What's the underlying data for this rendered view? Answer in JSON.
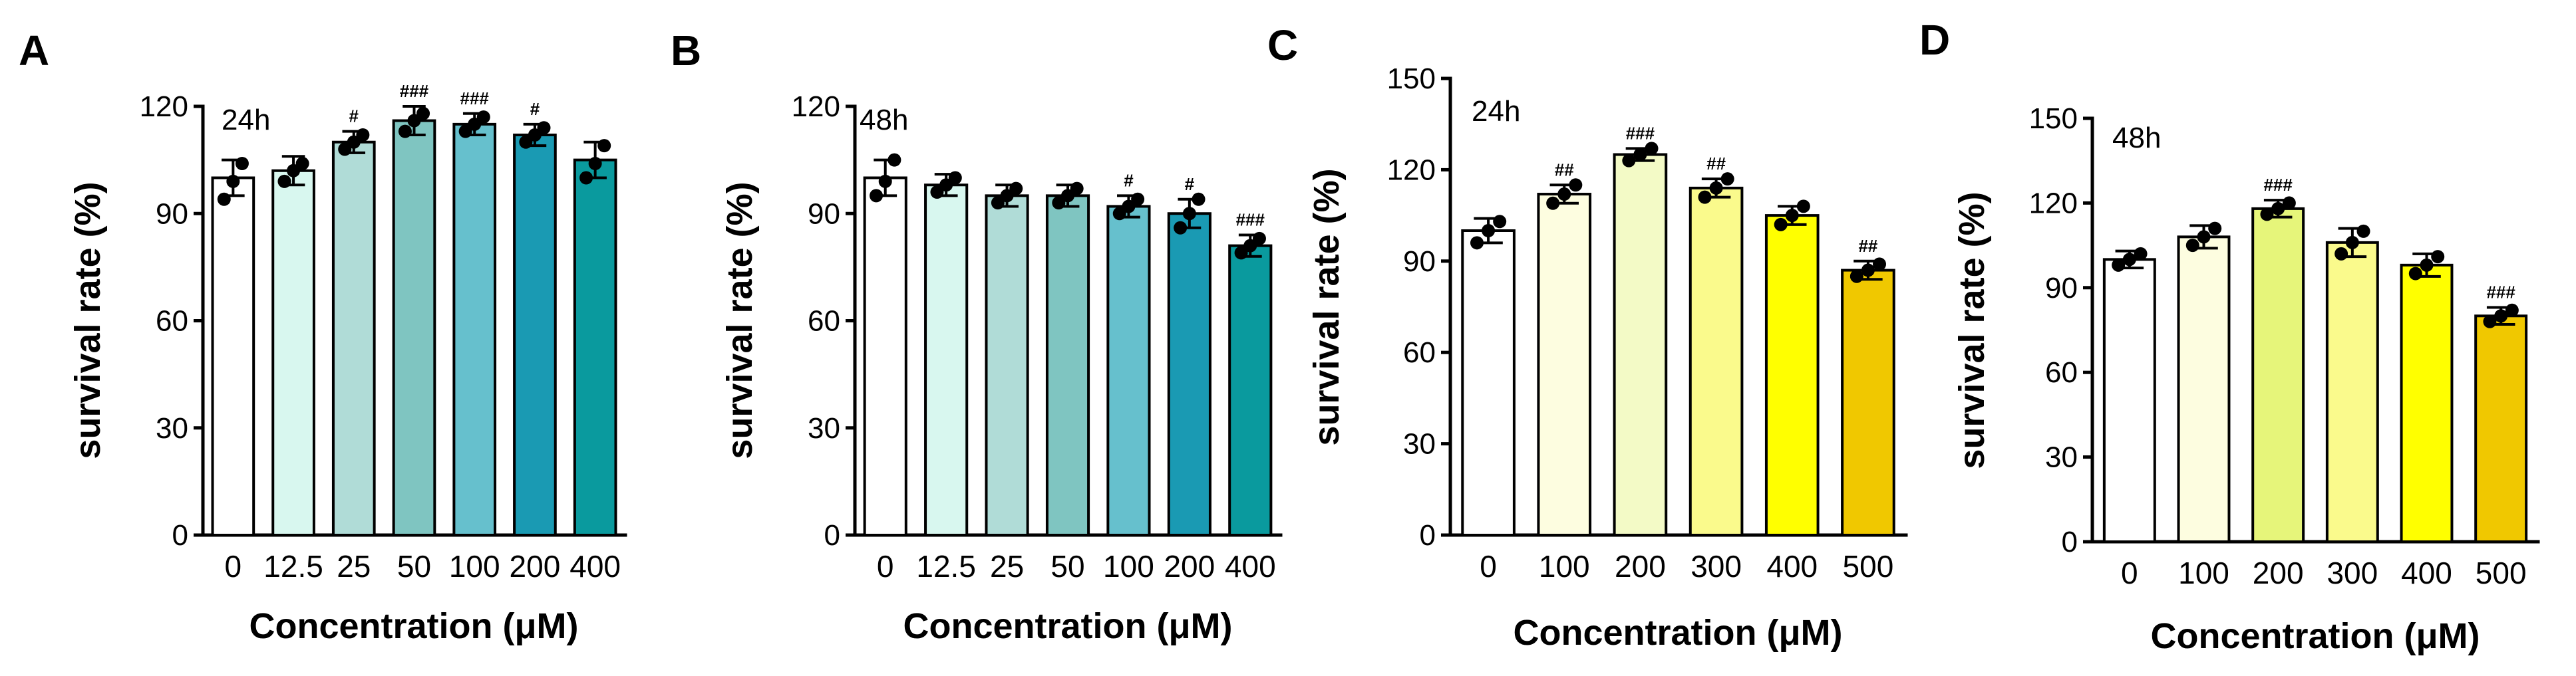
{
  "chart_data": [
    {
      "type": "bar",
      "panel_label": "A",
      "annotation": "24h",
      "categories": [
        "0",
        "12.5",
        "25",
        "50",
        "100",
        "200",
        "400"
      ],
      "values": [
        100,
        102,
        110,
        116,
        115,
        112,
        105
      ],
      "errors": [
        5,
        4,
        3,
        4,
        3,
        3,
        5
      ],
      "points": [
        [
          94,
          99,
          104
        ],
        [
          99,
          102,
          104
        ],
        [
          108,
          110,
          112
        ],
        [
          113,
          116,
          118
        ],
        [
          113,
          115,
          117
        ],
        [
          110,
          112,
          114
        ],
        [
          100,
          104,
          109
        ]
      ],
      "significance": [
        "",
        "",
        "#",
        "###",
        "###",
        "#",
        ""
      ],
      "colors": [
        "#ffffff",
        "#d8f7ef",
        "#b0dcd7",
        "#7fc5c1",
        "#66c0cd",
        "#1a9ab3",
        "#0a9a9e"
      ],
      "xlabel": "Concentration (μM)",
      "ylabel": "survival rate (%)",
      "ylim": [
        0,
        120
      ],
      "yticks": [
        0,
        30,
        60,
        90,
        120
      ]
    },
    {
      "type": "bar",
      "panel_label": "B",
      "annotation": "48h",
      "categories": [
        "0",
        "12.5",
        "25",
        "50",
        "100",
        "200",
        "400"
      ],
      "values": [
        100,
        98,
        95,
        95,
        92,
        90,
        81
      ],
      "errors": [
        5,
        3,
        3,
        3,
        3,
        4,
        3
      ],
      "points": [
        [
          95,
          99,
          105
        ],
        [
          96,
          98,
          100
        ],
        [
          93,
          95,
          97
        ],
        [
          93,
          95,
          97
        ],
        [
          90,
          92,
          94
        ],
        [
          86,
          90,
          94
        ],
        [
          79,
          81,
          83
        ]
      ],
      "significance": [
        "",
        "",
        "",
        "",
        "#",
        "#",
        "###"
      ],
      "colors": [
        "#ffffff",
        "#d8f7ef",
        "#b0dcd7",
        "#7fc5c1",
        "#66c0cd",
        "#1a9ab3",
        "#0a9a9e"
      ],
      "xlabel": "Concentration (μM)",
      "ylabel": "survival rate (%)",
      "ylim": [
        0,
        120
      ],
      "yticks": [
        0,
        30,
        60,
        90,
        120
      ]
    },
    {
      "type": "bar",
      "panel_label": "C",
      "annotation": "24h",
      "categories": [
        "0",
        "100",
        "200",
        "300",
        "400",
        "500"
      ],
      "values": [
        100,
        112,
        125,
        114,
        105,
        87
      ],
      "errors": [
        4,
        3,
        2,
        3,
        3,
        3
      ],
      "points": [
        [
          96,
          100,
          103
        ],
        [
          109,
          112,
          115
        ],
        [
          123,
          125,
          127
        ],
        [
          111,
          114,
          117
        ],
        [
          102,
          105,
          108
        ],
        [
          85,
          87,
          89
        ]
      ],
      "significance": [
        "",
        "##",
        "###",
        "##",
        "",
        "##"
      ],
      "colors": [
        "#ffffff",
        "#fdfde0",
        "#f3fac6",
        "#fafa8c",
        "#ffff00",
        "#f0c800"
      ],
      "xlabel": "Concentration (μM)",
      "ylabel": "survival rate (%)",
      "ylim": [
        0,
        150
      ],
      "yticks": [
        0,
        30,
        60,
        90,
        120,
        150
      ]
    },
    {
      "type": "bar",
      "panel_label": "D",
      "annotation": "48h",
      "categories": [
        "0",
        "100",
        "200",
        "300",
        "400",
        "500"
      ],
      "values": [
        100,
        108,
        118,
        106,
        98,
        80
      ],
      "errors": [
        3,
        4,
        3,
        5,
        4,
        3
      ],
      "points": [
        [
          98,
          100,
          102
        ],
        [
          105,
          108,
          111
        ],
        [
          116,
          118,
          120
        ],
        [
          102,
          106,
          110
        ],
        [
          95,
          98,
          101
        ],
        [
          78,
          80,
          82
        ]
      ],
      "significance": [
        "",
        "",
        "###",
        "",
        "",
        "###"
      ],
      "colors": [
        "#ffffff",
        "#fdfde0",
        "#e6f57a",
        "#fafa8c",
        "#ffff00",
        "#f0c800"
      ],
      "xlabel": "Concentration (μM)",
      "ylabel": "survival rate (%)",
      "ylim": [
        0,
        150
      ],
      "yticks": [
        0,
        30,
        60,
        90,
        120,
        150
      ]
    }
  ]
}
